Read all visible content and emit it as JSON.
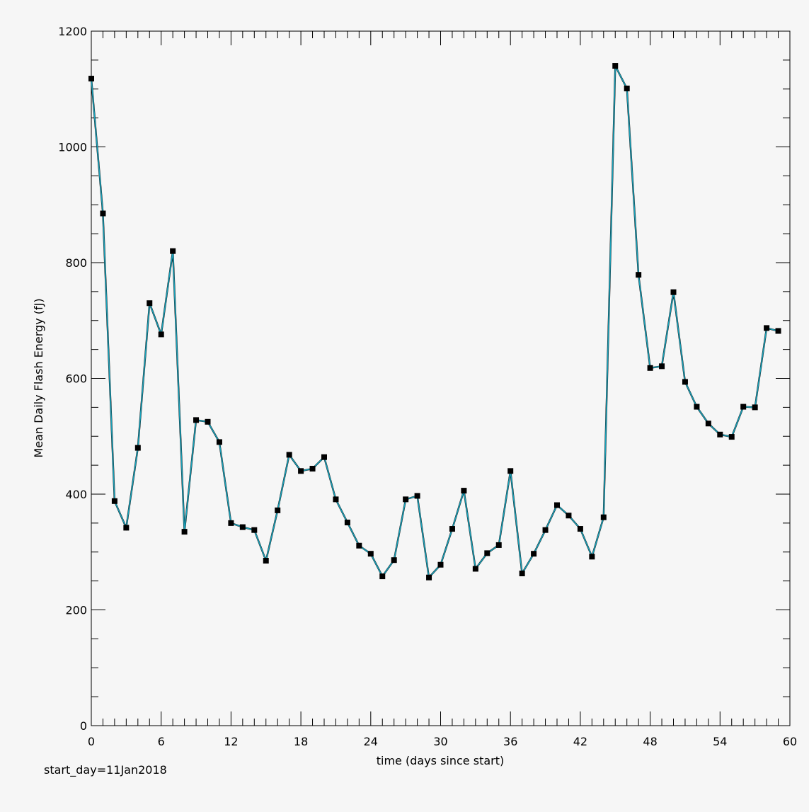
{
  "chart_data": {
    "type": "line",
    "x_label": "time (days since start)",
    "y_label": "Mean Daily Flash Energy (fJ)",
    "xlim": [
      0,
      60
    ],
    "ylim": [
      0,
      1200
    ],
    "x_ticks": [
      0,
      6,
      12,
      18,
      24,
      30,
      36,
      42,
      48,
      54,
      60
    ],
    "y_ticks": [
      0,
      200,
      400,
      600,
      800,
      1000,
      1200
    ],
    "x_minor_step": 1,
    "y_minor_step": 50,
    "grid": false,
    "line_color": "#1aa0b8",
    "marker_color": "#000000",
    "marker": "square",
    "series": [
      {
        "x": [
          0,
          1,
          2,
          3,
          4,
          5,
          6,
          7,
          8,
          9,
          10,
          11,
          12,
          13,
          14,
          15,
          16,
          17,
          18,
          19,
          20,
          21,
          22,
          23,
          24,
          25,
          26,
          27,
          28,
          29,
          30,
          31,
          32,
          33,
          34,
          35,
          36,
          37,
          38,
          39,
          40,
          41,
          42,
          43,
          44,
          45,
          46,
          47,
          48,
          49,
          50,
          51,
          52,
          53,
          54,
          55,
          56,
          57,
          58,
          59
        ],
        "y": [
          1118,
          885,
          388,
          342,
          480,
          730,
          676,
          820,
          335,
          528,
          525,
          490,
          350,
          343,
          338,
          285,
          372,
          468,
          440,
          444,
          464,
          391,
          351,
          311,
          297,
          258,
          286,
          391,
          397,
          256,
          278,
          340,
          406,
          271,
          298,
          312,
          440,
          263,
          297,
          338,
          381,
          363,
          340,
          292,
          360,
          1140,
          1101,
          779,
          618,
          621,
          749,
          594,
          551,
          522,
          503,
          499,
          551,
          550,
          687,
          682
        ]
      }
    ]
  },
  "annotation": {
    "start_day": "start_day=11Jan2018"
  }
}
